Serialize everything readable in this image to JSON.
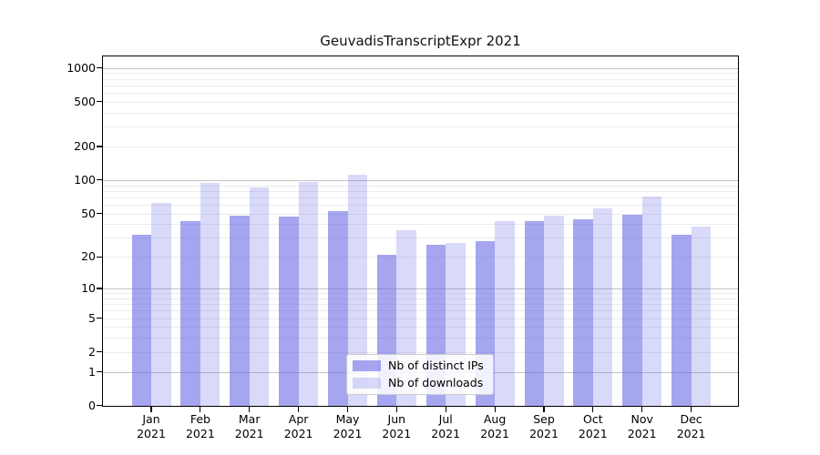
{
  "title": "GeuvadisTranscriptExpr 2021",
  "legend": {
    "items": [
      {
        "label": "Nb of distinct IPs",
        "color": "rgba(110,110,230,0.62)"
      },
      {
        "label": "Nb of downloads",
        "color": "rgba(110,110,230,0.26)"
      }
    ]
  },
  "x_axis": {
    "months": [
      "Jan",
      "Feb",
      "Mar",
      "Apr",
      "May",
      "Jun",
      "Jul",
      "Aug",
      "Sep",
      "Oct",
      "Nov",
      "Dec"
    ],
    "year": "2021"
  },
  "y_axis": {
    "ticks": [
      0,
      1,
      2,
      5,
      10,
      20,
      50,
      100,
      200,
      500,
      1000
    ]
  },
  "chart_data": {
    "type": "bar",
    "title": "GeuvadisTranscriptExpr 2021",
    "categories": [
      "Jan 2021",
      "Feb 2021",
      "Mar 2021",
      "Apr 2021",
      "May 2021",
      "Jun 2021",
      "Jul 2021",
      "Aug 2021",
      "Sep 2021",
      "Oct 2021",
      "Nov 2021",
      "Dec 2021"
    ],
    "series": [
      {
        "name": "Nb of distinct IPs",
        "color": "rgba(110,110,230,0.62)",
        "values": [
          32,
          43,
          48,
          47,
          53,
          21,
          26,
          28,
          43,
          44,
          49,
          32
        ]
      },
      {
        "name": "Nb of downloads",
        "color": "rgba(110,110,230,0.26)",
        "values": [
          62,
          95,
          86,
          96,
          111,
          35,
          27,
          43,
          48,
          56,
          71,
          38
        ]
      }
    ],
    "xlabel": "",
    "ylabel": "",
    "yscale": "log1p",
    "yticks": [
      0,
      1,
      2,
      5,
      10,
      20,
      50,
      100,
      200,
      500,
      1000
    ],
    "minor_gridlines": [
      2,
      3,
      4,
      5,
      6,
      7,
      8,
      9,
      20,
      30,
      40,
      50,
      60,
      70,
      80,
      90,
      200,
      300,
      400,
      500,
      600,
      700,
      800,
      900
    ],
    "major_gridlines": [
      1,
      10,
      100,
      1000
    ],
    "ylim": [
      0,
      1280
    ],
    "grid": "horizontal",
    "legend_position": "lower-center-inside"
  }
}
